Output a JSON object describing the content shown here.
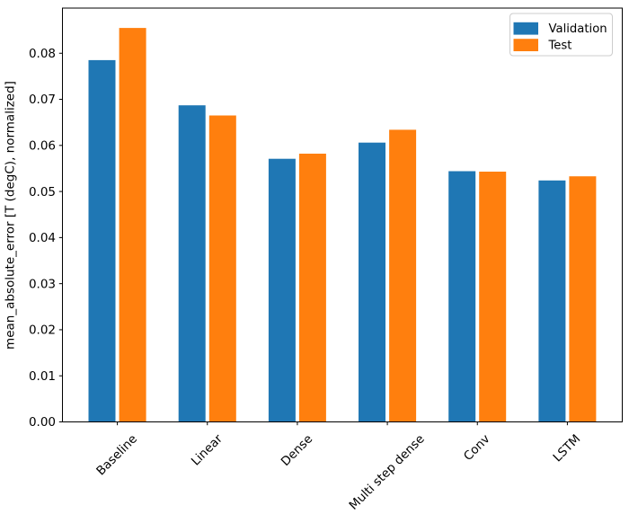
{
  "figure": {
    "background": "#ffffff"
  },
  "chart_data": {
    "type": "bar",
    "title": "",
    "categories": [
      "Baseline",
      "Linear",
      "Dense",
      "Multi step dense",
      "Conv",
      "LSTM"
    ],
    "series": [
      {
        "name": "Validation",
        "color": "#1f77b4",
        "values": [
          0.0785,
          0.0687,
          0.0571,
          0.0606,
          0.0544,
          0.0524
        ]
      },
      {
        "name": "Test",
        "color": "#ff7f0e",
        "values": [
          0.0855,
          0.0665,
          0.0582,
          0.0634,
          0.0543,
          0.0533
        ]
      }
    ],
    "xlabel": "",
    "ylabel": "mean_absolute_error [T (degC), normalized]",
    "ylim": [
      0,
      0.0898
    ],
    "xlim": [
      -0.61,
      5.61
    ],
    "yticks": [
      0.0,
      0.01,
      0.02,
      0.03,
      0.04,
      0.05,
      0.06,
      0.07,
      0.08
    ],
    "ytick_labels": [
      "0.00",
      "0.01",
      "0.02",
      "0.03",
      "0.04",
      "0.05",
      "0.06",
      "0.07",
      "0.08"
    ],
    "xtick_rotation": 45,
    "grid": false,
    "bar_width": 0.3,
    "bar_offsets": [
      -0.17,
      0.17
    ],
    "legend": {
      "location": "upper right",
      "entries": [
        "Validation",
        "Test"
      ],
      "border_color": "#cccccc",
      "background": "#ffffff"
    },
    "axis_color": "#000000"
  }
}
